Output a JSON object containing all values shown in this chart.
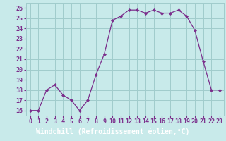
{
  "x": [
    0,
    1,
    2,
    3,
    4,
    5,
    6,
    7,
    8,
    9,
    10,
    11,
    12,
    13,
    14,
    15,
    16,
    17,
    18,
    19,
    20,
    21,
    22,
    23
  ],
  "y": [
    16,
    16,
    18,
    18.5,
    17.5,
    17,
    16,
    17,
    19.5,
    21.5,
    24.8,
    25.2,
    25.8,
    25.8,
    25.5,
    25.8,
    25.5,
    25.5,
    25.8,
    25.2,
    23.8,
    20.8,
    18,
    18
  ],
  "line_color": "#7b2d8b",
  "marker": "D",
  "marker_size": 2,
  "bg_color": "#c8eaea",
  "grid_color": "#a0cccc",
  "xlabel": "Windchill (Refroidissement éolien,°C)",
  "xlabel_bg": "#7b2d8b",
  "xlabel_color": "#ffffff",
  "ylabel_ticks": [
    16,
    17,
    18,
    19,
    20,
    21,
    22,
    23,
    24,
    25,
    26
  ],
  "xlim": [
    -0.5,
    23.5
  ],
  "ylim": [
    15.5,
    26.5
  ],
  "xtick_labels": [
    "0",
    "1",
    "2",
    "3",
    "4",
    "5",
    "6",
    "7",
    "8",
    "9",
    "10",
    "11",
    "12",
    "13",
    "14",
    "15",
    "16",
    "17",
    "18",
    "19",
    "20",
    "21",
    "22",
    "23"
  ],
  "tick_fontsize": 6,
  "label_fontsize": 7
}
